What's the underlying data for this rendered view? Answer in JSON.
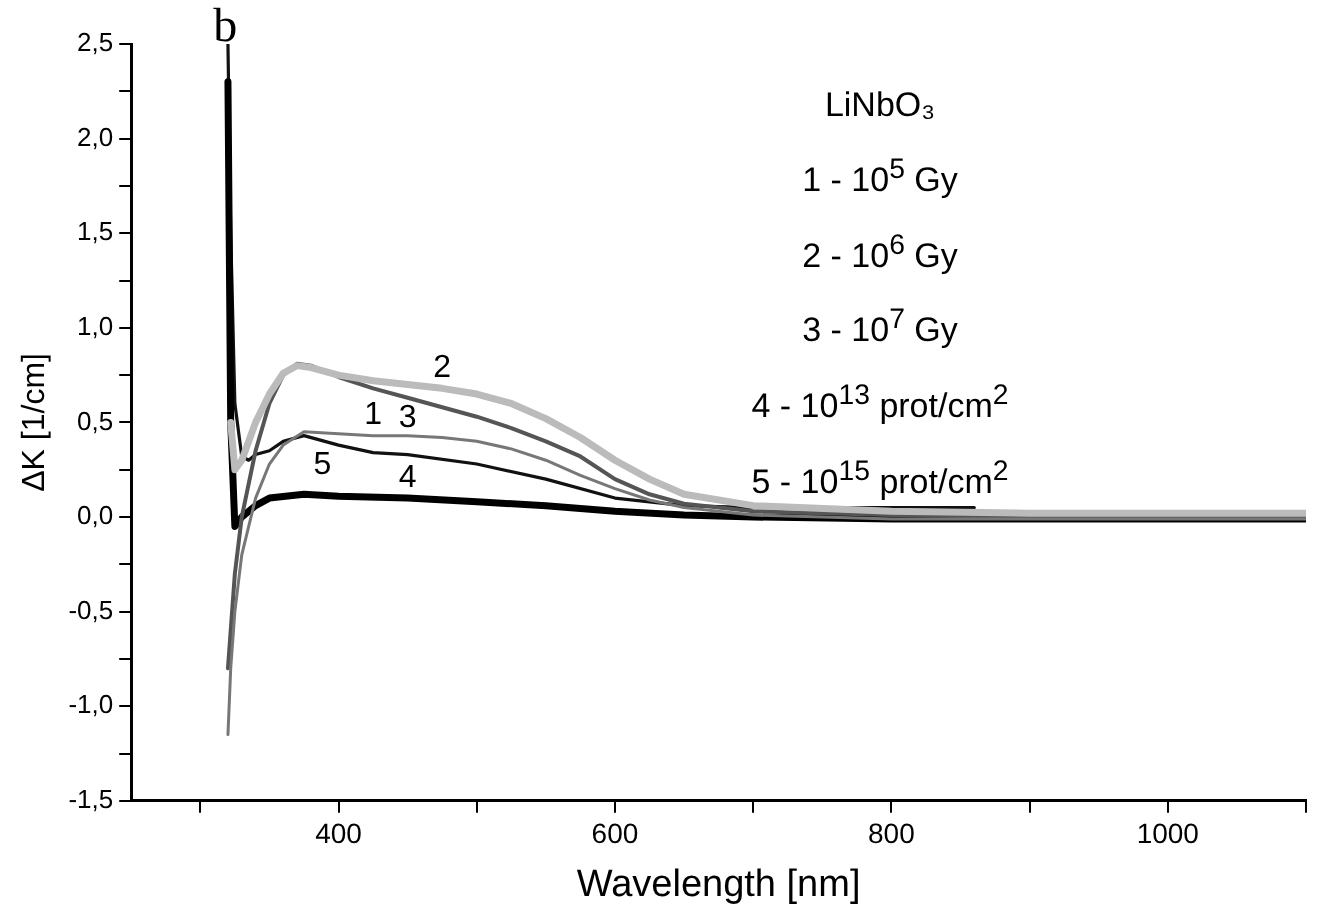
{
  "chart_data": {
    "type": "line",
    "title": "b",
    "xlabel": "Wavelength [nm]",
    "ylabel": "ΔK [1/cm]",
    "xlim": [
      250,
      1100
    ],
    "xticks": [
      {
        "value": 300,
        "label": null
      },
      400,
      {
        "value": 500,
        "label": null
      },
      600,
      {
        "value": 700,
        "label": null
      },
      800,
      {
        "value": 900,
        "label": null
      },
      1000,
      {
        "value": 1100,
        "label": null
      }
    ],
    "ylim": [
      -1.5,
      2.5
    ],
    "yticks": [
      {
        "value": -1.5,
        "label": "-1,5"
      },
      {
        "value": -1.25,
        "label": null
      },
      {
        "value": -1,
        "label": "-1,0"
      },
      {
        "value": -0.75,
        "label": null
      },
      {
        "value": -0.5,
        "label": "-0,5"
      },
      {
        "value": -0.25,
        "label": null
      },
      {
        "value": 0,
        "label": "0,0"
      },
      {
        "value": 0.25,
        "label": null
      },
      {
        "value": 0.5,
        "label": "0,5"
      },
      {
        "value": 0.75,
        "label": null
      },
      {
        "value": 1,
        "label": "1,0"
      },
      {
        "value": 1.25,
        "label": null
      },
      {
        "value": 1.5,
        "label": "1,5"
      },
      {
        "value": 1.75,
        "label": null
      },
      {
        "value": 2,
        "label": "2,0"
      },
      {
        "value": 2.25,
        "label": null
      },
      {
        "value": 2.5,
        "label": "2,5"
      }
    ],
    "grid": false,
    "legend": false,
    "marker": "none",
    "line_style": "solid",
    "series": [
      {
        "name": "1",
        "color": "#777777",
        "x": [
          320,
          322,
          325,
          330,
          340,
          350,
          360,
          375,
          400,
          425,
          450,
          475,
          500,
          525,
          550,
          575,
          600,
          625,
          650,
          700,
          800,
          900,
          1000,
          1100
        ],
        "values": [
          -1.15,
          -0.8,
          -0.5,
          -0.2,
          0.1,
          0.28,
          0.38,
          0.45,
          0.44,
          0.43,
          0.43,
          0.42,
          0.4,
          0.36,
          0.3,
          0.22,
          0.15,
          0.09,
          0.05,
          0.01,
          -0.01,
          -0.01,
          -0.01,
          -0.01
        ]
      },
      {
        "name": "2",
        "color": "#bbbbbb",
        "x": [
          322,
          325,
          330,
          340,
          350,
          360,
          370,
          380,
          400,
          425,
          450,
          475,
          500,
          525,
          550,
          575,
          600,
          625,
          650,
          700,
          800,
          900,
          1000,
          1100
        ],
        "values": [
          0.5,
          0.25,
          0.3,
          0.5,
          0.65,
          0.76,
          0.8,
          0.79,
          0.75,
          0.72,
          0.7,
          0.68,
          0.65,
          0.6,
          0.52,
          0.42,
          0.3,
          0.2,
          0.12,
          0.06,
          0.03,
          0.02,
          0.02,
          0.02
        ]
      },
      {
        "name": "3",
        "color": "#555555",
        "x": [
          320,
          325,
          330,
          340,
          350,
          360,
          370,
          380,
          400,
          425,
          450,
          475,
          500,
          525,
          550,
          575,
          600,
          625,
          650,
          700,
          800,
          900,
          1000,
          1100
        ],
        "values": [
          -0.8,
          -0.3,
          0.0,
          0.35,
          0.6,
          0.75,
          0.81,
          0.8,
          0.74,
          0.68,
          0.63,
          0.58,
          0.53,
          0.47,
          0.4,
          0.32,
          0.2,
          0.12,
          0.07,
          0.03,
          0.01,
          0.0,
          0.0,
          0.0
        ]
      },
      {
        "name": "4",
        "color": "#000000",
        "x": [
          320,
          322,
          325,
          330,
          340,
          350,
          375,
          400,
          450,
          500,
          550,
          600,
          650,
          700,
          800,
          900,
          1000,
          1100
        ],
        "values": [
          2.3,
          0.5,
          -0.05,
          0.0,
          0.06,
          0.1,
          0.12,
          0.11,
          0.1,
          0.08,
          0.06,
          0.03,
          0.01,
          0.0,
          -0.01,
          -0.01,
          -0.01,
          -0.01
        ]
      },
      {
        "name": "5",
        "color": "#111111",
        "x": [
          320,
          322,
          325,
          330,
          335,
          340,
          350,
          360,
          375,
          400,
          425,
          450,
          500,
          550,
          600,
          650,
          700,
          800,
          860
        ],
        "values": [
          2.5,
          1.5,
          0.6,
          0.32,
          0.3,
          0.33,
          0.35,
          0.4,
          0.43,
          0.38,
          0.34,
          0.33,
          0.28,
          0.2,
          0.1,
          0.06,
          0.05,
          0.05,
          0.05
        ]
      }
    ],
    "annotations": [
      "LiNbO₃",
      "1 - 10$^{5}$ Gy",
      "2 - 10$^{6}$ Gy",
      "3 - 10$^{7}$ Gy",
      "4 - 10$^{13}$ prot/cm$^{2}$",
      "5 - 10$^{15}$ prot/cm$^{2}$"
    ]
  }
}
